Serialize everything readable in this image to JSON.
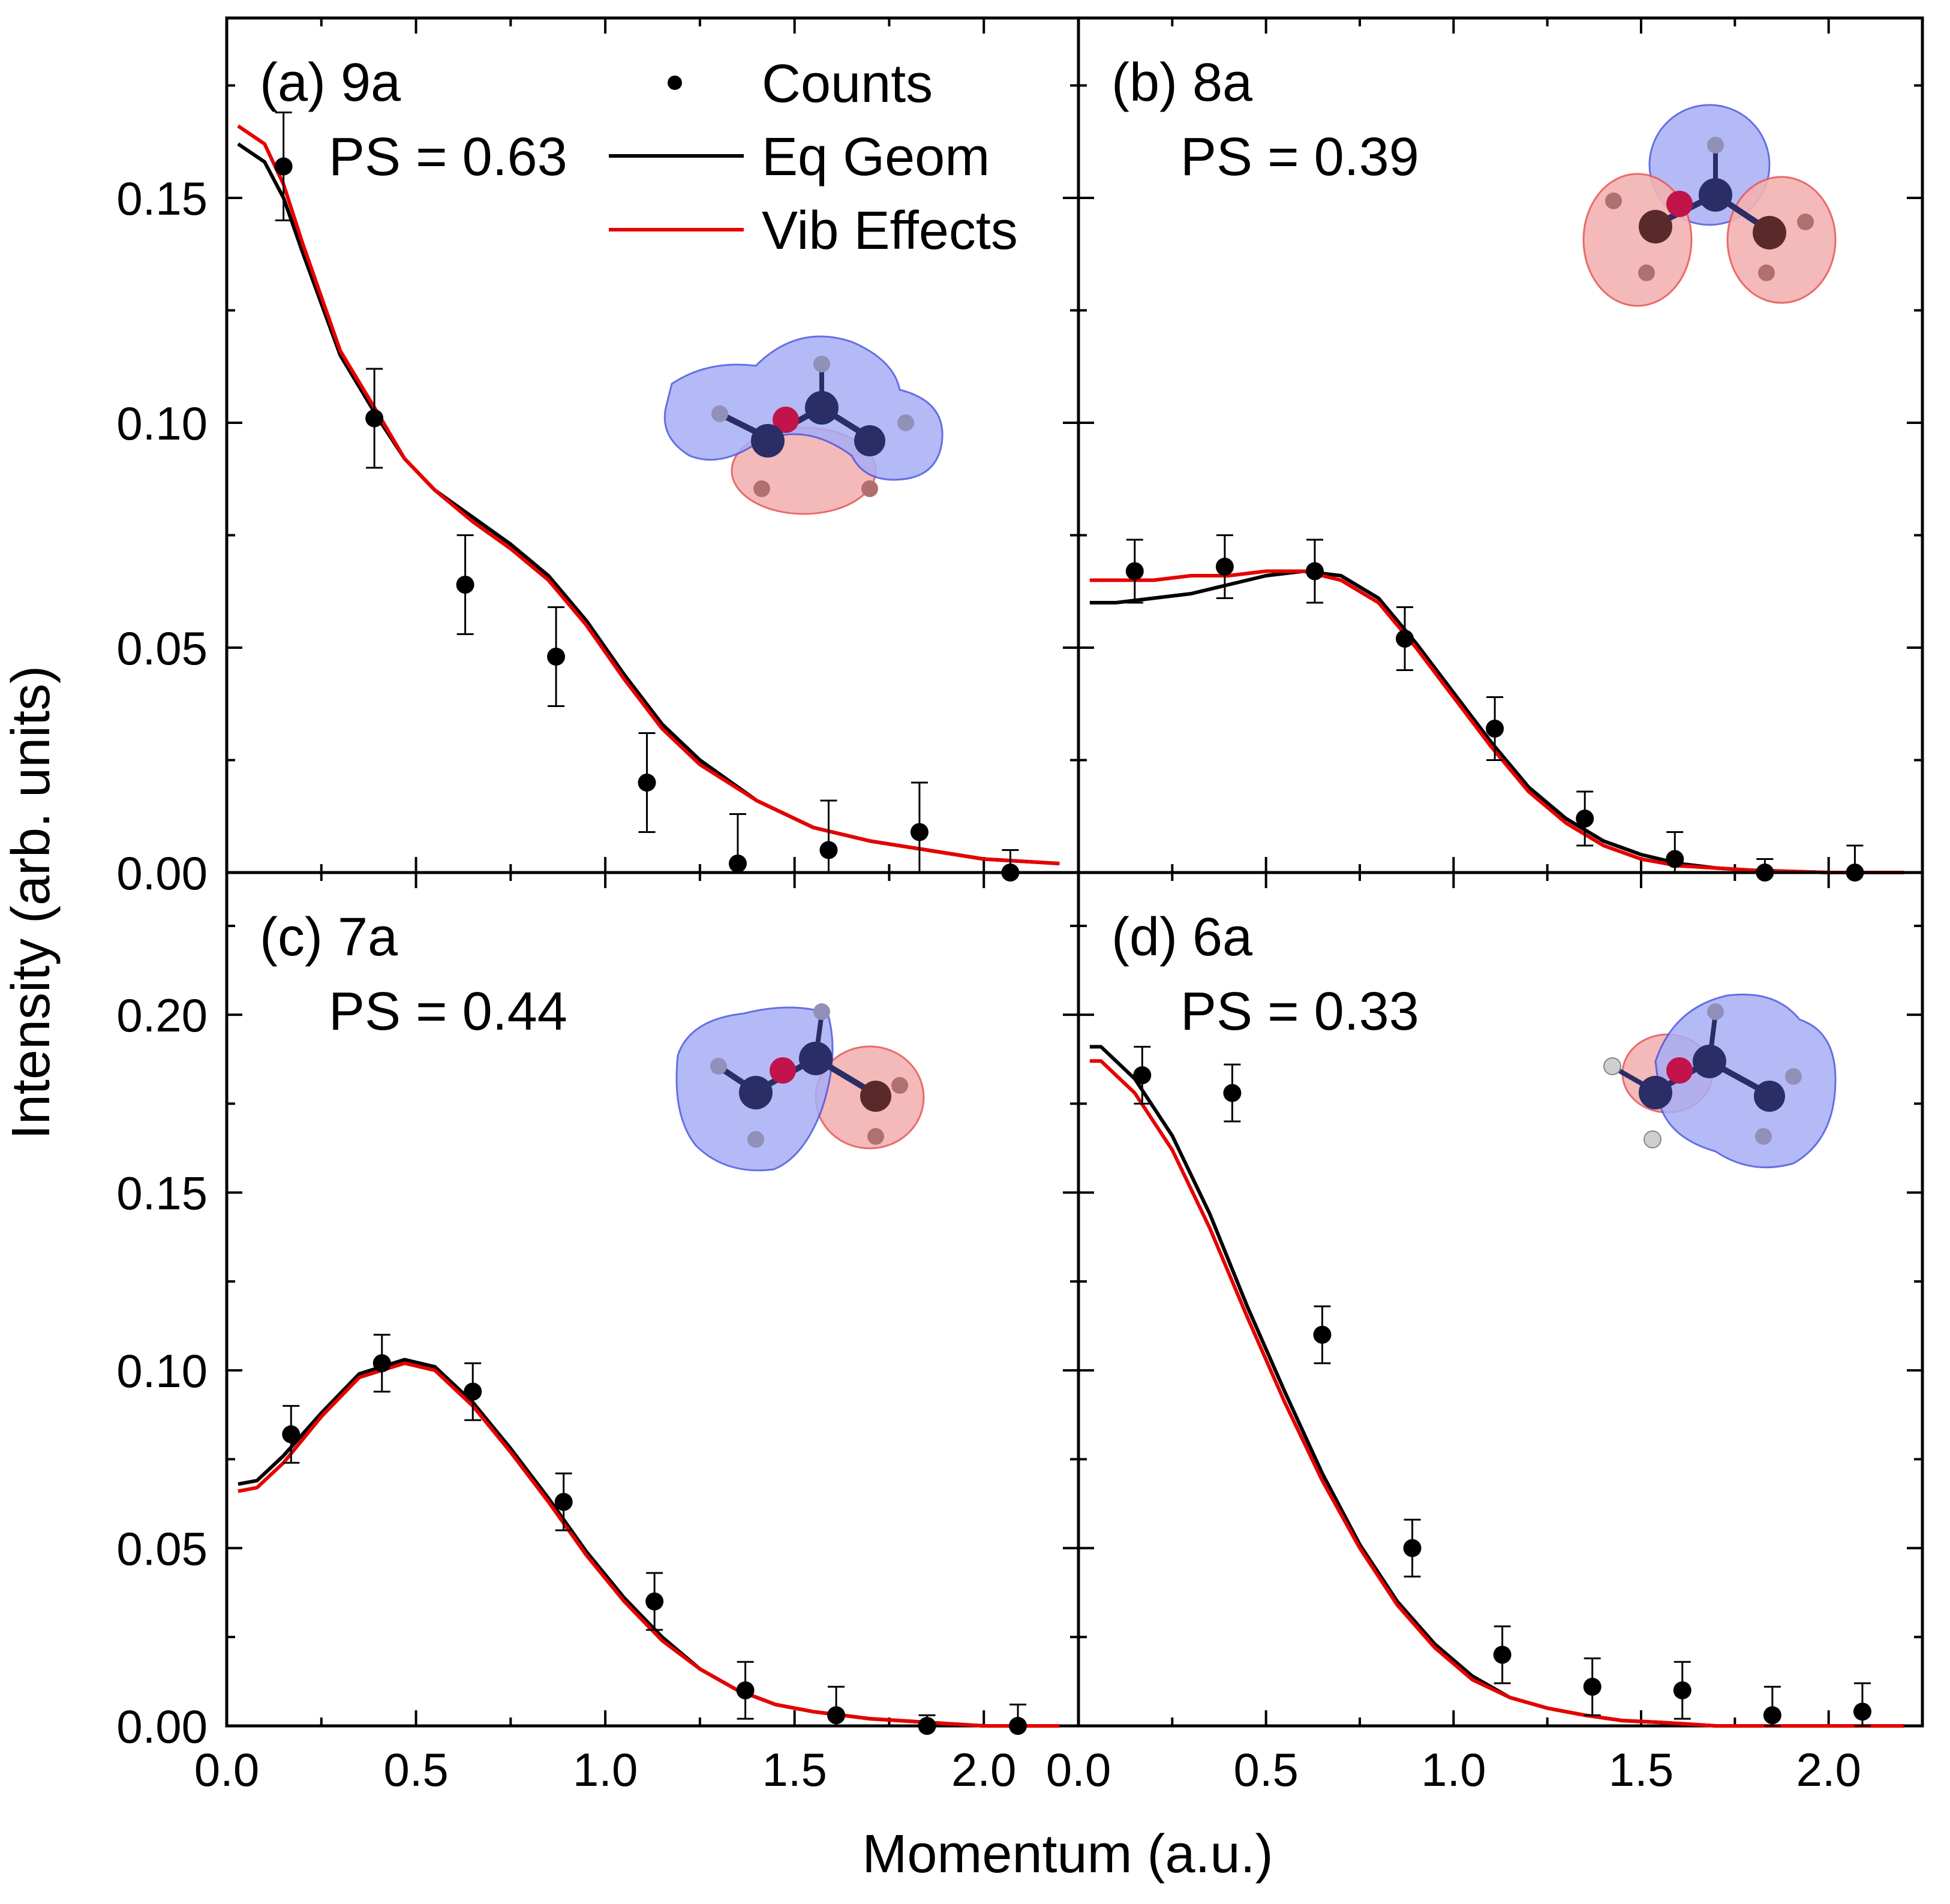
{
  "figure": {
    "ylabel": "Intensity (arb. units)",
    "xlabel": "Momentum (a.u.)",
    "legend": [
      {
        "label": "Counts",
        "kind": "marker"
      },
      {
        "label": "Eq Geom",
        "kind": "line"
      },
      {
        "label": "Vib Effects",
        "kind": "line"
      }
    ]
  },
  "colors": {
    "counts": "#000000",
    "eq_geom": "#000000",
    "vib_effects": "#e60000",
    "lobe_blue": "#4a56e0",
    "lobe_red": "#e85a5a",
    "atom_n": "#2a2d66",
    "atom_o": "#c0144a",
    "atom_c": "#5a2a2a",
    "atom_h": "#9090b8"
  },
  "chart_data": [
    {
      "type": "line",
      "id": "a",
      "title": "(a) 9a",
      "annotation": "PS = 0.63",
      "xlim": [
        0.0,
        2.25
      ],
      "ylim": [
        0.0,
        0.19
      ],
      "xticks": [
        "0.0",
        "0.5",
        "1.0",
        "1.5",
        "2.0"
      ],
      "yticks": [
        "0.00",
        "0.05",
        "0.10",
        "0.15"
      ],
      "ytick_values": [
        0.0,
        0.05,
        0.1,
        0.15
      ],
      "counts": {
        "x": [
          0.15,
          0.39,
          0.63,
          0.87,
          1.11,
          1.35,
          1.59,
          1.83,
          2.07
        ],
        "y": [
          0.157,
          0.101,
          0.064,
          0.048,
          0.02,
          0.002,
          0.005,
          0.009,
          0.0
        ],
        "err": [
          0.012,
          0.011,
          0.011,
          0.011,
          0.011,
          0.011,
          0.011,
          0.011,
          0.005
        ]
      },
      "eq_geom": {
        "x": [
          0.03,
          0.1,
          0.15,
          0.2,
          0.3,
          0.4,
          0.47,
          0.55,
          0.65,
          0.75,
          0.85,
          0.95,
          1.05,
          1.15,
          1.25,
          1.4,
          1.55,
          1.7,
          1.85,
          2.0,
          2.2
        ],
        "y": [
          0.162,
          0.158,
          0.15,
          0.138,
          0.115,
          0.101,
          0.092,
          0.085,
          0.079,
          0.073,
          0.066,
          0.056,
          0.044,
          0.033,
          0.025,
          0.016,
          0.01,
          0.007,
          0.005,
          0.003,
          0.002
        ]
      },
      "vib_effects": {
        "x": [
          0.03,
          0.1,
          0.15,
          0.2,
          0.3,
          0.4,
          0.47,
          0.55,
          0.65,
          0.75,
          0.85,
          0.95,
          1.05,
          1.15,
          1.25,
          1.4,
          1.55,
          1.7,
          1.85,
          2.0,
          2.2
        ],
        "y": [
          0.166,
          0.162,
          0.153,
          0.14,
          0.116,
          0.102,
          0.092,
          0.085,
          0.078,
          0.072,
          0.065,
          0.055,
          0.043,
          0.032,
          0.024,
          0.016,
          0.01,
          0.007,
          0.005,
          0.003,
          0.002
        ]
      }
    },
    {
      "type": "line",
      "id": "b",
      "title": "(b) 8a",
      "annotation": "PS = 0.39",
      "xlim": [
        0.0,
        2.25
      ],
      "ylim": [
        0.0,
        0.19
      ],
      "xticks": [
        "0.0",
        "0.5",
        "1.0",
        "1.5",
        "2.0"
      ],
      "yticks": [],
      "ytick_values": [
        0.0,
        0.05,
        0.1,
        0.15
      ],
      "counts": {
        "x": [
          0.15,
          0.39,
          0.63,
          0.87,
          1.11,
          1.35,
          1.59,
          1.83,
          2.07
        ],
        "y": [
          0.067,
          0.068,
          0.067,
          0.052,
          0.032,
          0.012,
          0.003,
          0.0,
          0.0
        ],
        "err": [
          0.007,
          0.007,
          0.007,
          0.007,
          0.007,
          0.006,
          0.006,
          0.003,
          0.006
        ]
      },
      "eq_geom": {
        "x": [
          0.03,
          0.1,
          0.2,
          0.3,
          0.4,
          0.5,
          0.6,
          0.7,
          0.8,
          0.9,
          1.0,
          1.1,
          1.2,
          1.3,
          1.4,
          1.5,
          1.6,
          1.7,
          1.8,
          2.0,
          2.2
        ],
        "y": [
          0.06,
          0.06,
          0.061,
          0.062,
          0.064,
          0.066,
          0.067,
          0.066,
          0.061,
          0.051,
          0.04,
          0.029,
          0.019,
          0.012,
          0.007,
          0.004,
          0.002,
          0.001,
          0.0005,
          0.0,
          0.0
        ]
      },
      "vib_effects": {
        "x": [
          0.03,
          0.1,
          0.2,
          0.3,
          0.4,
          0.5,
          0.6,
          0.7,
          0.8,
          0.9,
          1.0,
          1.1,
          1.2,
          1.3,
          1.4,
          1.5,
          1.6,
          1.7,
          1.8,
          2.0,
          2.2
        ],
        "y": [
          0.065,
          0.065,
          0.065,
          0.066,
          0.066,
          0.067,
          0.067,
          0.065,
          0.06,
          0.05,
          0.039,
          0.028,
          0.018,
          0.011,
          0.006,
          0.003,
          0.0015,
          0.001,
          0.0005,
          0.0,
          0.0
        ]
      }
    },
    {
      "type": "line",
      "id": "c",
      "title": "(c) 7a",
      "annotation": "PS = 0.44",
      "xlim": [
        0.0,
        2.25
      ],
      "ylim": [
        0.0,
        0.24
      ],
      "xticks": [
        "0.0",
        "0.5",
        "1.0",
        "1.5",
        "2.0"
      ],
      "yticks": [
        "0.00",
        "0.05",
        "0.10",
        "0.15",
        "0.20"
      ],
      "ytick_values": [
        0.0,
        0.05,
        0.1,
        0.15,
        0.2
      ],
      "counts": {
        "x": [
          0.17,
          0.41,
          0.65,
          0.89,
          1.13,
          1.37,
          1.61,
          1.85,
          2.09
        ],
        "y": [
          0.082,
          0.102,
          0.094,
          0.063,
          0.035,
          0.01,
          0.003,
          0.0,
          0.0
        ],
        "err": [
          0.008,
          0.008,
          0.008,
          0.008,
          0.008,
          0.008,
          0.008,
          0.003,
          0.006
        ]
      },
      "eq_geom": {
        "x": [
          0.03,
          0.08,
          0.15,
          0.25,
          0.35,
          0.47,
          0.55,
          0.65,
          0.75,
          0.85,
          0.95,
          1.05,
          1.15,
          1.25,
          1.35,
          1.45,
          1.55,
          1.7,
          1.85,
          2.0,
          2.2
        ],
        "y": [
          0.068,
          0.069,
          0.076,
          0.088,
          0.099,
          0.103,
          0.101,
          0.091,
          0.078,
          0.064,
          0.049,
          0.036,
          0.025,
          0.016,
          0.01,
          0.006,
          0.004,
          0.002,
          0.001,
          0.0,
          0.0
        ]
      },
      "vib_effects": {
        "x": [
          0.03,
          0.08,
          0.15,
          0.25,
          0.35,
          0.47,
          0.55,
          0.65,
          0.75,
          0.85,
          0.95,
          1.05,
          1.15,
          1.25,
          1.35,
          1.45,
          1.55,
          1.7,
          1.85,
          2.0,
          2.2
        ],
        "y": [
          0.066,
          0.067,
          0.074,
          0.087,
          0.098,
          0.102,
          0.1,
          0.09,
          0.077,
          0.063,
          0.048,
          0.035,
          0.024,
          0.016,
          0.01,
          0.006,
          0.004,
          0.002,
          0.001,
          0.0,
          0.0
        ]
      }
    },
    {
      "type": "line",
      "id": "d",
      "title": "(d) 6a",
      "annotation": "PS = 0.33",
      "xlim": [
        0.0,
        2.25
      ],
      "ylim": [
        0.0,
        0.24
      ],
      "xticks": [
        "0.0",
        "0.5",
        "1.0",
        "1.5",
        "2.0"
      ],
      "yticks": [],
      "ytick_values": [
        0.0,
        0.05,
        0.1,
        0.15,
        0.2
      ],
      "counts": {
        "x": [
          0.17,
          0.41,
          0.65,
          0.89,
          1.13,
          1.37,
          1.61,
          1.85,
          2.09
        ],
        "y": [
          0.183,
          0.178,
          0.11,
          0.05,
          0.02,
          0.011,
          0.01,
          0.003,
          0.004
        ],
        "err": [
          0.008,
          0.008,
          0.008,
          0.008,
          0.008,
          0.008,
          0.008,
          0.008,
          0.008
        ]
      },
      "eq_geom": {
        "x": [
          0.03,
          0.06,
          0.15,
          0.25,
          0.35,
          0.45,
          0.55,
          0.65,
          0.75,
          0.85,
          0.95,
          1.05,
          1.15,
          1.25,
          1.35,
          1.45,
          1.55,
          1.7,
          1.85,
          2.0,
          2.2
        ],
        "y": [
          0.191,
          0.191,
          0.182,
          0.166,
          0.144,
          0.118,
          0.094,
          0.071,
          0.051,
          0.035,
          0.023,
          0.014,
          0.008,
          0.005,
          0.003,
          0.0015,
          0.001,
          0.0,
          0.0,
          0.0,
          0.0
        ]
      },
      "vib_effects": {
        "x": [
          0.03,
          0.06,
          0.15,
          0.25,
          0.35,
          0.45,
          0.55,
          0.65,
          0.75,
          0.85,
          0.95,
          1.05,
          1.15,
          1.25,
          1.35,
          1.45,
          1.55,
          1.7,
          1.85,
          2.0,
          2.2
        ],
        "y": [
          0.187,
          0.187,
          0.178,
          0.162,
          0.14,
          0.115,
          0.091,
          0.069,
          0.05,
          0.034,
          0.022,
          0.013,
          0.008,
          0.005,
          0.003,
          0.0015,
          0.001,
          0.0,
          0.0,
          0.0,
          0.0
        ]
      }
    }
  ]
}
